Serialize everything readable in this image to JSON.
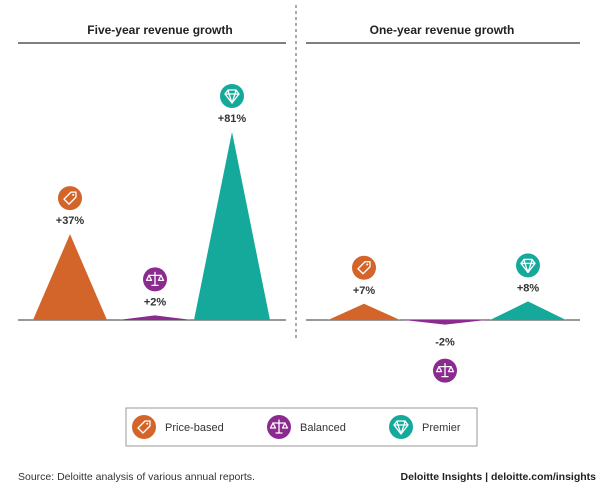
{
  "colors": {
    "price-based": "#D4652A",
    "balanced": "#8B2A8F",
    "premier": "#14A99B",
    "rule": "#333333",
    "divider": "#555555"
  },
  "chart_data": [
    {
      "type": "area",
      "title": "Five-year revenue growth",
      "ylim": [
        -12,
        81
      ],
      "categories": [
        "Price-based",
        "Balanced",
        "Premier"
      ],
      "series": [
        {
          "name": "Price-based",
          "key": "price-based",
          "value": 37,
          "label": "+37%",
          "icon": "price-tag-icon"
        },
        {
          "name": "Balanced",
          "key": "balanced",
          "value": 2,
          "label": "+2%",
          "icon": "scales-icon"
        },
        {
          "name": "Premier",
          "key": "premier",
          "value": 81,
          "label": "+81%",
          "icon": "diamond-icon"
        }
      ]
    },
    {
      "type": "area",
      "title": "One-year revenue growth",
      "ylim": [
        -12,
        81
      ],
      "categories": [
        "Price-based",
        "Balanced",
        "Premier"
      ],
      "series": [
        {
          "name": "Price-based",
          "key": "price-based",
          "value": 7,
          "label": "+7%",
          "icon": "price-tag-icon"
        },
        {
          "name": "Balanced",
          "key": "balanced",
          "value": -2,
          "label": "-2%",
          "icon": "scales-icon"
        },
        {
          "name": "Premier",
          "key": "premier",
          "value": 8,
          "label": "+8%",
          "icon": "diamond-icon"
        }
      ]
    }
  ],
  "legend": [
    {
      "label": "Price-based",
      "key": "price-based",
      "icon": "price-tag-icon"
    },
    {
      "label": "Balanced",
      "key": "balanced",
      "icon": "scales-icon"
    },
    {
      "label": "Premier",
      "key": "premier",
      "icon": "diamond-icon"
    }
  ],
  "footer": {
    "source": "Source: Deloitte analysis of various annual reports.",
    "brand": "Deloitte Insights | deloitte.com/insights"
  }
}
